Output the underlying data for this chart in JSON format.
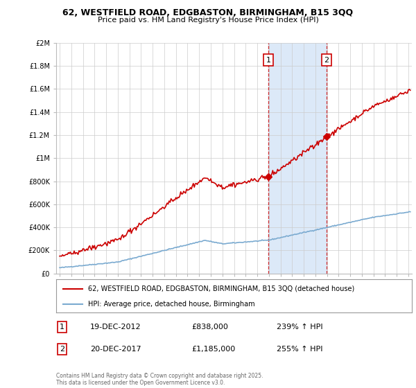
{
  "title1": "62, WESTFIELD ROAD, EDGBASTON, BIRMINGHAM, B15 3QQ",
  "title2": "Price paid vs. HM Land Registry's House Price Index (HPI)",
  "background_color": "#ffffff",
  "plot_bg_color": "#ffffff",
  "grid_color": "#cccccc",
  "hpi_shade_color": "#dce9f8",
  "dashed_line_color": "#cc0000",
  "red_line_color": "#cc0000",
  "blue_line_color": "#7aaad0",
  "sale1_year": 2012.97,
  "sale1_value": 838000,
  "sale1_label": "1",
  "sale1_date": "19-DEC-2012",
  "sale1_price": "£838,000",
  "sale1_hpi": "239% ↑ HPI",
  "sale2_year": 2017.97,
  "sale2_value": 1185000,
  "sale2_label": "2",
  "sale2_date": "20-DEC-2017",
  "sale2_price": "£1,185,000",
  "sale2_hpi": "255% ↑ HPI",
  "shade_x1": 2012.97,
  "shade_x2": 2017.97,
  "ylim": [
    0,
    2000000
  ],
  "xlim_start": 1994.7,
  "xlim_end": 2025.3,
  "ytick_values": [
    0,
    200000,
    400000,
    600000,
    800000,
    1000000,
    1200000,
    1400000,
    1600000,
    1800000,
    2000000
  ],
  "ytick_labels": [
    "£0",
    "£200K",
    "£400K",
    "£600K",
    "£800K",
    "£1M",
    "£1.2M",
    "£1.4M",
    "£1.6M",
    "£1.8M",
    "£2M"
  ],
  "legend_red_label": "62, WESTFIELD ROAD, EDGBASTON, BIRMINGHAM, B15 3QQ (detached house)",
  "legend_blue_label": "HPI: Average price, detached house, Birmingham",
  "footer": "Contains HM Land Registry data © Crown copyright and database right 2025.\nThis data is licensed under the Open Government Licence v3.0."
}
